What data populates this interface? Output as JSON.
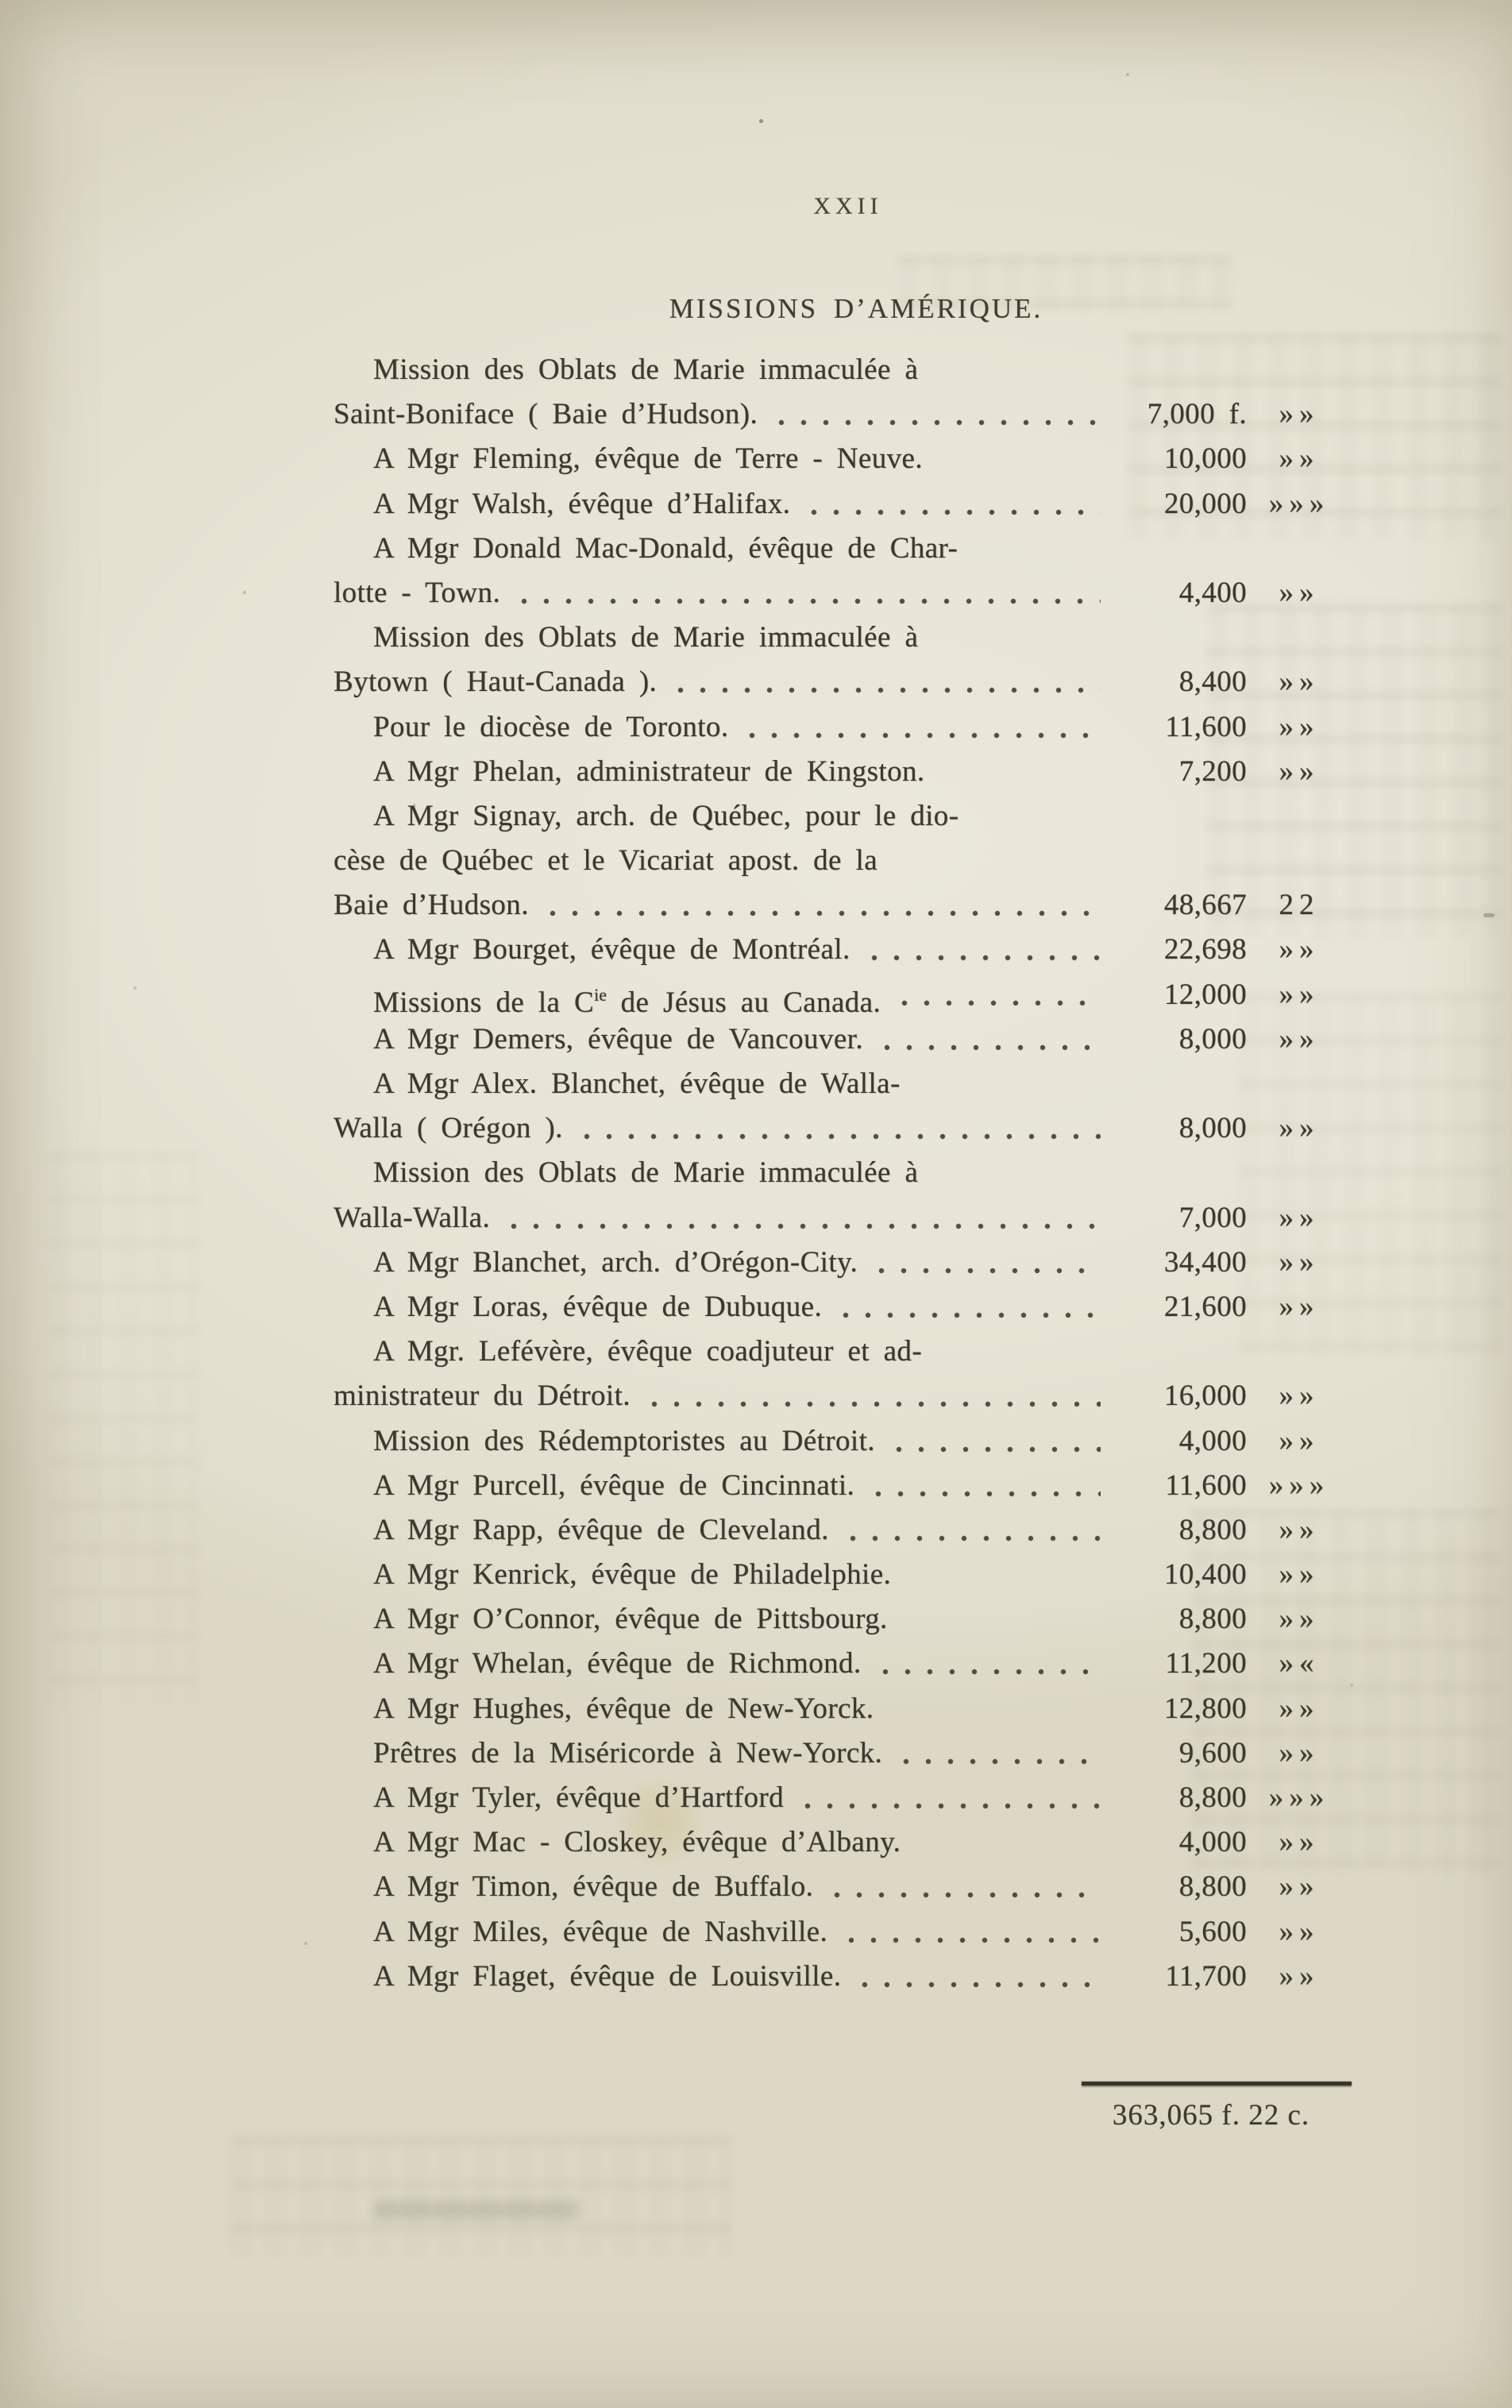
{
  "page": {
    "number": "XXII",
    "title": "MISSIONS D’AMÉRIQUE."
  },
  "entries": {
    "lines": [
      {
        "text": "Mission des Oblats de Marie immaculée à",
        "indent": true
      },
      {
        "text": "Saint-Boniface ( Baie d’Hudson).",
        "leader": true,
        "amount": "7,000 f.",
        "cents": "»»"
      },
      {
        "text": "A Mgr Fleming, évêque de Terre - Neuve.",
        "indent": true,
        "amount": "10,000",
        "cents": "»»"
      },
      {
        "text": "A Mgr Walsh, évêque d’Halifax.",
        "indent": true,
        "leader": true,
        "amount": "20,000",
        "cents": "»»»"
      },
      {
        "text": "A Mgr Donald Mac-Donald, évêque de Char-",
        "indent": true
      },
      {
        "text": "lotte - Town.",
        "leader": true,
        "amount": "4,400",
        "cents": "»»"
      },
      {
        "text": "Mission des Oblats de Marie immaculée à",
        "indent": true
      },
      {
        "text": "Bytown ( Haut-Canada ).",
        "leader": true,
        "amount": "8,400",
        "cents": "»»"
      },
      {
        "text": "Pour le diocèse de Toronto.",
        "indent": true,
        "leader": true,
        "amount": "11,600",
        "cents": "»»"
      },
      {
        "text": "A Mgr Phelan, administrateur de Kingston.",
        "indent": true,
        "amount": "7,200",
        "cents": "»»"
      },
      {
        "text": "A Mgr Signay, arch. de Québec, pour le dio-",
        "indent": true
      },
      {
        "text": "cèse de Québec et le Vicariat apost. de la"
      },
      {
        "text": "Baie d’Hudson.",
        "leader": true,
        "amount": "48,667",
        "cents": "22"
      },
      {
        "text": "A Mgr Bourget, évêque de Montréal.",
        "indent": true,
        "leader": true,
        "amount": "22,698",
        "cents": "»»"
      },
      {
        "text": "Missions de la C{ie} de Jésus au Canada.",
        "indent": true,
        "leader": true,
        "amount": "12,000",
        "cents": "»»"
      },
      {
        "text": "A Mgr Demers, évêque de Vancouver.",
        "indent": true,
        "leader": true,
        "amount": "8,000",
        "cents": "»»"
      },
      {
        "text": "A Mgr Alex. Blanchet, évêque de Walla-",
        "indent": true
      },
      {
        "text": "Walla ( Orégon ).",
        "leader": true,
        "amount": "8,000",
        "cents": "»»"
      },
      {
        "text": "Mission des Oblats de Marie immaculée à",
        "indent": true
      },
      {
        "text": "Walla-Walla.",
        "leader": true,
        "amount": "7,000",
        "cents": "»»"
      },
      {
        "text": "A Mgr Blanchet, arch. d’Orégon-City.",
        "indent": true,
        "leader": true,
        "amount": "34,400",
        "cents": "»»"
      },
      {
        "text": "A Mgr Loras, évêque de Dubuque.",
        "indent": true,
        "leader": true,
        "amount": "21,600",
        "cents": "»»"
      },
      {
        "text": "A Mgr. Lefévère, évêque coadjuteur et ad-",
        "indent": true
      },
      {
        "text": "ministrateur du Détroit.",
        "leader": true,
        "amount": "16,000",
        "cents": "»»"
      },
      {
        "text": "Mission des Rédemptoristes au Détroit.",
        "indent": true,
        "leader": true,
        "amount": "4,000",
        "cents": "»»"
      },
      {
        "text": "A Mgr Purcell, évêque de Cincinnati.",
        "indent": true,
        "leader": true,
        "amount": "11,600",
        "cents": "»»»"
      },
      {
        "text": "A Mgr Rapp, évêque de Cleveland.",
        "indent": true,
        "leader": true,
        "amount": "8,800",
        "cents": "»»"
      },
      {
        "text": "A Mgr Kenrick, évêque de Philadelphie.",
        "indent": true,
        "amount": "10,400",
        "cents": "»»"
      },
      {
        "text": "A Mgr O’Connor, évêque de Pittsbourg.",
        "indent": true,
        "amount": "8,800",
        "cents": "»»"
      },
      {
        "text": "A Mgr Whelan, évêque de Richmond.",
        "indent": true,
        "leader": true,
        "amount": "11,200",
        "cents": "»«"
      },
      {
        "text": "A Mgr Hughes, évêque de New-Yorck.",
        "indent": true,
        "amount": "12,800",
        "cents": "»»"
      },
      {
        "text": "Prêtres de la Miséricorde à New-Yorck.",
        "indent": true,
        "leader": true,
        "amount": "9,600",
        "cents": "»»"
      },
      {
        "text": "A Mgr Tyler, évêque d’Hartford",
        "indent": true,
        "leader": true,
        "amount": "8,800",
        "cents": "»»»"
      },
      {
        "text": "A Mgr Mac - Closkey, évêque d’Albany.",
        "indent": true,
        "amount": "4,000",
        "cents": "»»"
      },
      {
        "text": "A Mgr Timon, évêque de Buffalo.",
        "indent": true,
        "leader": true,
        "amount": "8,800",
        "cents": "»»"
      },
      {
        "text": "A Mgr Miles, évêque de Nashville.",
        "indent": true,
        "leader": true,
        "amount": "5,600",
        "cents": "»»"
      },
      {
        "text": "A Mgr Flaget, évêque de Louisville.",
        "indent": true,
        "leader": true,
        "amount": "11,700",
        "cents": "»»"
      }
    ]
  },
  "summary": {
    "total": "363,065 f. 22 c."
  }
}
